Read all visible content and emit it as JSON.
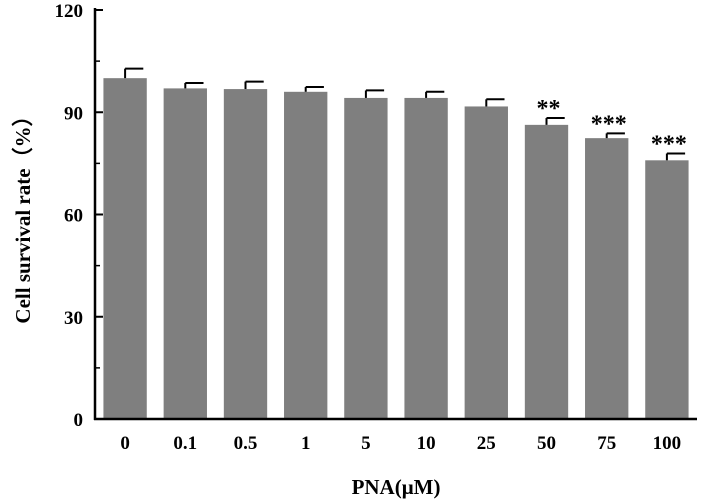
{
  "chart_data": {
    "type": "bar",
    "categories": [
      "0",
      "0.1",
      "0.5",
      "1",
      "5",
      "10",
      "25",
      "50",
      "75",
      "100"
    ],
    "values": [
      100,
      97,
      96.8,
      96,
      94.2,
      94.2,
      91.7,
      86.3,
      82.4,
      75.9
    ],
    "errors": [
      2.8,
      1.6,
      2.2,
      1.4,
      2.2,
      1.8,
      2.1,
      2.0,
      1.4,
      2.0
    ],
    "significance": [
      "",
      "",
      "",
      "",
      "",
      "",
      "",
      "**",
      "***",
      "***"
    ],
    "xlabel": "PNA(μM)",
    "ylabel": "Cell survival rate（%）",
    "ylim": [
      0,
      120
    ],
    "yticks": [
      0,
      30,
      60,
      90,
      120
    ],
    "grid": false,
    "bar_color": "#7f7f7f",
    "axis_color": "#000000"
  }
}
